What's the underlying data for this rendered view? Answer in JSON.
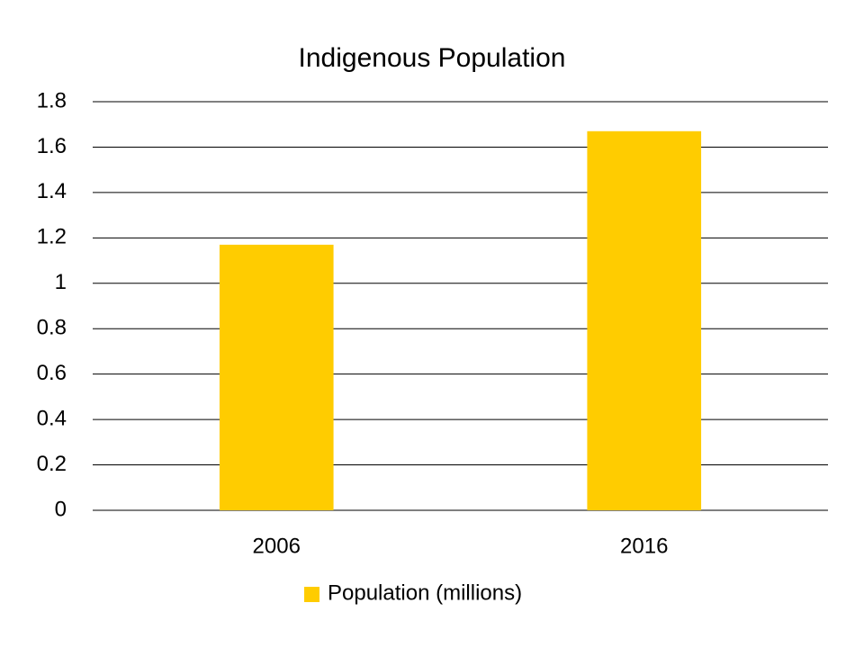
{
  "chart_data": {
    "type": "bar",
    "title": "Indigenous Population",
    "categories": [
      "2006",
      "2016"
    ],
    "series": [
      {
        "name": "Population (millions)",
        "color": "#ffcc00",
        "values": [
          1.17,
          1.67
        ]
      }
    ],
    "ylim": [
      0,
      1.8
    ],
    "yticks": [
      0,
      0.2,
      0.4,
      0.6,
      0.8,
      1,
      1.2,
      1.4,
      1.6,
      1.8
    ],
    "grid": true,
    "legend": "bottom"
  }
}
